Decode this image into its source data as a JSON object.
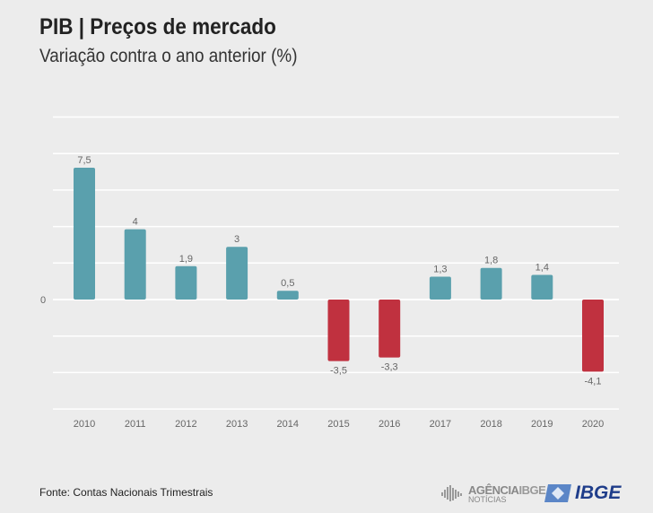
{
  "header": {
    "title": "PIB | Preços de mercado",
    "subtitle": "Variação contra o ano anterior (%)"
  },
  "footer": {
    "source": "Fonte: Contas Nacionais Trimestrais",
    "agencia_logo": "AGÊNCIA IBGE NOTÍCIAS",
    "ibge_logo": "IBGE"
  },
  "chart_data": {
    "type": "bar",
    "title": "PIB | Preços de mercado",
    "subtitle": "Variação contra o ano anterior (%)",
    "categories": [
      "2010",
      "2011",
      "2012",
      "2013",
      "2014",
      "2015",
      "2016",
      "2017",
      "2018",
      "2019",
      "2020"
    ],
    "values": [
      7.5,
      4,
      1.9,
      3,
      0.5,
      -3.5,
      -3.3,
      1.3,
      1.8,
      1.4,
      -4.1
    ],
    "labels": [
      "7,5",
      "4",
      "1,9",
      "3",
      "0,5",
      "-3,5",
      "-3,3",
      "1,3",
      "1,8",
      "1,4",
      "-4,1"
    ],
    "y_tick_labels": [
      "0"
    ],
    "grid": true,
    "colors": {
      "positive": "#5aa0ad",
      "negative": "#c0313f"
    }
  }
}
